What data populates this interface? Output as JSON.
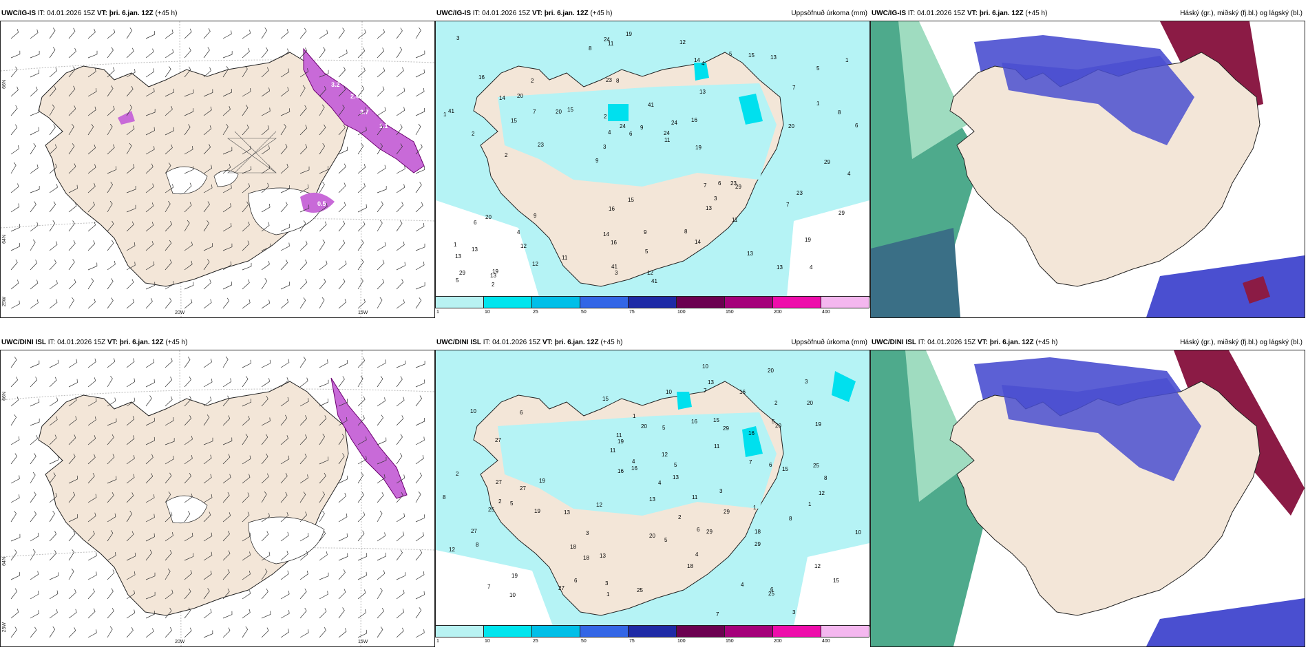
{
  "rows": [
    {
      "model": "UWC/IG-IS",
      "header_rest": "IT: 04.01.2026 15Z",
      "vt_label": "VT:",
      "vt_value": "þri. 6.jan. 12Z",
      "lead": "(+45 h)",
      "precip_title": "Uppsöfnuð úrkoma (mm)",
      "cloud_title": "Háský (gr.), miðský (fj.bl.) og lágský (bl.)",
      "lat_labels": [
        "66N",
        "64N"
      ],
      "lon_labels": [
        "25W",
        "20W",
        "15W"
      ],
      "lat_right": [
        "66N",
        "64N"
      ],
      "snow_values": [
        "3.2",
        "2.4",
        "3.7",
        "1.1",
        "0.5"
      ],
      "precip_values": [
        "4",
        "2",
        "5",
        "9",
        "13",
        "19",
        "23",
        "41",
        "20",
        "15",
        "13",
        "12",
        "8",
        "24",
        "29",
        "16",
        "11",
        "6",
        "7",
        "1",
        "3",
        "14"
      ]
    },
    {
      "model": "UWC/DINI ISL",
      "header_rest": "IT: 04.01.2026 15Z",
      "vt_label": "VT:",
      "vt_value": "þri. 6.jan. 12Z",
      "lead": "(+45 h)",
      "precip_title": "Uppsöfnuð úrkoma (mm)",
      "cloud_title": "Háský (gr.), miðský (fj.bl.) og lágský (bl.)",
      "lat_labels": [
        "66N",
        "64N"
      ],
      "lon_labels": [
        "25W",
        "20W",
        "15W"
      ],
      "lat_right": [
        "66N",
        "64N"
      ],
      "snow_values": [
        "2.4",
        "0.5"
      ],
      "precip_values": [
        "3",
        "5",
        "6",
        "10",
        "12",
        "27",
        "19",
        "13",
        "16",
        "20",
        "29",
        "25",
        "18",
        "15",
        "11",
        "8",
        "1",
        "4",
        "2",
        "7"
      ]
    }
  ],
  "colorbar": {
    "ticks": [
      "1",
      "10",
      "25",
      "50",
      "75",
      "100",
      "150",
      "200",
      "400"
    ],
    "colors": [
      "#b8f2f2",
      "#00e5ee",
      "#00bfe8",
      "#3366e6",
      "#1e2aa6",
      "#6b0050",
      "#a5007a",
      "#ee0dab",
      "#f4b7ef"
    ]
  },
  "colors": {
    "land": "#f3e6d8",
    "precip_light": "#b5f3f5",
    "precip_mid": "#00e0ee",
    "snow": "#c86ad8",
    "cloud_high": "#2f9b78",
    "cloud_mid_blue": "#4a4fd0",
    "cloud_low_red": "#8b1b45"
  }
}
